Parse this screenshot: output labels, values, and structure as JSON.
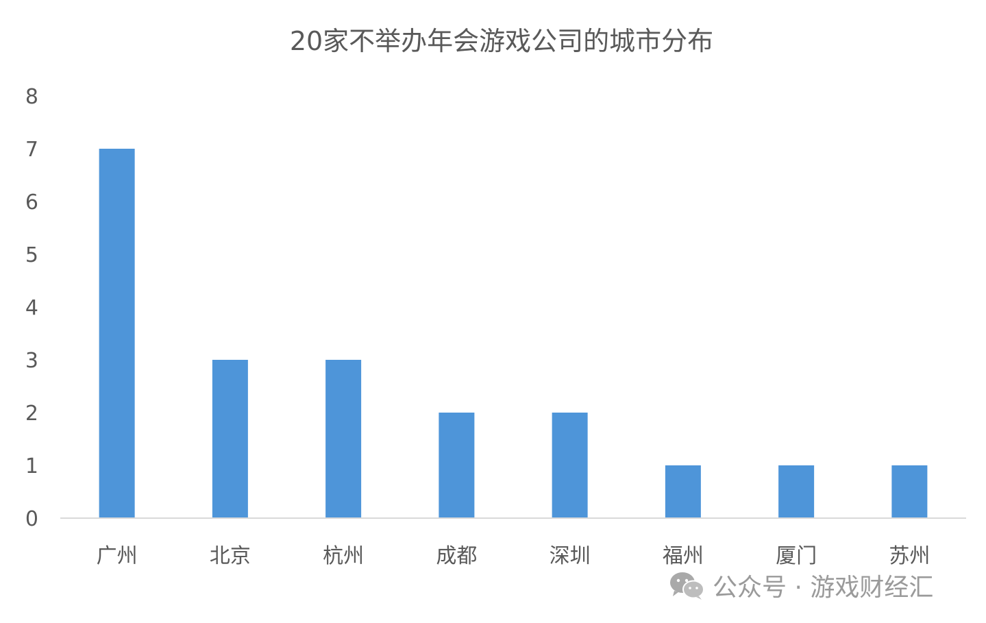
{
  "chart_data": {
    "type": "bar",
    "title": "20家不举办年会游戏公司的城市分布",
    "categories": [
      "广州",
      "北京",
      "杭州",
      "成都",
      "深圳",
      "福州",
      "厦门",
      "苏州"
    ],
    "values": [
      7,
      3,
      3,
      2,
      2,
      1,
      1,
      1
    ],
    "ylim": [
      0,
      8
    ],
    "yticks": [
      "0",
      "1",
      "2",
      "3",
      "4",
      "5",
      "6",
      "7",
      "8"
    ],
    "xlabel": "",
    "ylabel": "",
    "grid": false,
    "legend": "none",
    "bar_color": "#4e95d9",
    "axis_color": "#d9d9d9"
  },
  "watermark": {
    "icon": "wechat-icon",
    "text": "公众号 · 游戏财经汇"
  }
}
